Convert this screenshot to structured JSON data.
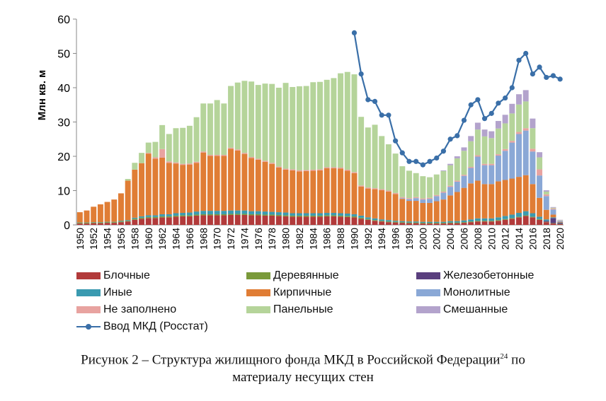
{
  "chart_data": {
    "type": "bar",
    "stacked": true,
    "ylabel": "Млн кв. м",
    "ylim": [
      0,
      60
    ],
    "yticks": [
      0,
      10,
      20,
      30,
      40,
      50,
      60
    ],
    "x": [
      1950,
      1951,
      1952,
      1953,
      1954,
      1955,
      1956,
      1957,
      1958,
      1959,
      1960,
      1961,
      1962,
      1963,
      1964,
      1965,
      1966,
      1967,
      1968,
      1969,
      1970,
      1971,
      1972,
      1973,
      1974,
      1975,
      1976,
      1977,
      1978,
      1979,
      1980,
      1981,
      1982,
      1983,
      1984,
      1985,
      1986,
      1987,
      1988,
      1989,
      1990,
      1991,
      1992,
      1993,
      1994,
      1995,
      1996,
      1997,
      1998,
      1999,
      2000,
      2001,
      2002,
      2003,
      2004,
      2005,
      2006,
      2007,
      2008,
      2009,
      2010,
      2011,
      2012,
      2013,
      2014,
      2015,
      2016,
      2017,
      2018,
      2019,
      2020
    ],
    "xtick_labels": [
      "1950",
      "1952",
      "1954",
      "1956",
      "1958",
      "1960",
      "1962",
      "1964",
      "1966",
      "1968",
      "1970",
      "1972",
      "1974",
      "1976",
      "1978",
      "1980",
      "1982",
      "1984",
      "1986",
      "1988",
      "1990",
      "1992",
      "1994",
      "1996",
      "1998",
      "2000",
      "2002",
      "2004",
      "2006",
      "2008",
      "2010",
      "2012",
      "2014",
      "2016",
      "2018",
      "2020"
    ],
    "series": [
      {
        "name": "Блочные",
        "color": "#b23a3a",
        "values": [
          0.4,
          0.4,
          0.5,
          0.5,
          0.6,
          0.6,
          0.8,
          1,
          1.5,
          1.8,
          2,
          2,
          2.2,
          2.2,
          2.4,
          2.5,
          2.5,
          2.7,
          2.8,
          2.8,
          2.8,
          2.8,
          2.9,
          2.9,
          2.9,
          2.8,
          2.8,
          2.7,
          2.7,
          2.6,
          2.5,
          2.4,
          2.4,
          2.4,
          2.4,
          2.4,
          2.5,
          2.5,
          2.4,
          2.3,
          2.2,
          1.8,
          1.5,
          1.2,
          1,
          0.8,
          0.7,
          0.6,
          0.5,
          0.5,
          0.4,
          0.4,
          0.4,
          0.4,
          0.5,
          0.5,
          0.6,
          0.8,
          1,
          1,
          1,
          1.2,
          1.5,
          1.8,
          2.2,
          2.6,
          2.2,
          1.5,
          0.8,
          0.4,
          0.2
        ]
      },
      {
        "name": "Деревянные",
        "color": "#7a9a3a",
        "values": [
          0.2,
          0.2,
          0.2,
          0.2,
          0.2,
          0.2,
          0.2,
          0.2,
          0.3,
          0.3,
          0.3,
          0.3,
          0.3,
          0.3,
          0.3,
          0.3,
          0.3,
          0.3,
          0.3,
          0.3,
          0.3,
          0.3,
          0.3,
          0.3,
          0.3,
          0.3,
          0.3,
          0.3,
          0.3,
          0.3,
          0.3,
          0.3,
          0.3,
          0.3,
          0.3,
          0.3,
          0.3,
          0.3,
          0.3,
          0.3,
          0.3,
          0.3,
          0.2,
          0.2,
          0.2,
          0.2,
          0.2,
          0.2,
          0.2,
          0.2,
          0.2,
          0.2,
          0.2,
          0.2,
          0.2,
          0.2,
          0.2,
          0.2,
          0.2,
          0.2,
          0.2,
          0.2,
          0.2,
          0.2,
          0.2,
          0.2,
          0.2,
          0.2,
          0.1,
          0.1,
          0.1
        ]
      },
      {
        "name": "Железобетонные",
        "color": "#5a3f7e",
        "values": [
          0,
          0,
          0,
          0,
          0,
          0,
          0,
          0,
          0,
          0,
          0,
          0,
          0,
          0,
          0,
          0,
          0,
          0,
          0,
          0,
          0,
          0,
          0,
          0,
          0,
          0,
          0,
          0,
          0,
          0,
          0,
          0,
          0,
          0,
          0,
          0,
          0,
          0,
          0,
          0,
          0,
          0,
          0,
          0,
          0,
          0,
          0,
          0,
          0,
          0,
          0,
          0,
          0,
          0,
          0,
          0,
          0,
          0,
          0,
          0,
          0,
          0,
          0,
          0,
          0,
          0,
          0,
          0,
          0.3,
          1.5,
          0.3
        ]
      },
      {
        "name": "Иные",
        "color": "#3a9ab0",
        "values": [
          0.1,
          0.1,
          0.1,
          0.1,
          0.1,
          0.1,
          0.2,
          0.2,
          0.3,
          0.4,
          0.5,
          0.5,
          0.6,
          0.6,
          0.7,
          0.7,
          0.8,
          0.9,
          1,
          1,
          1,
          1,
          1,
          1,
          1,
          0.9,
          0.9,
          0.9,
          0.8,
          0.8,
          0.8,
          0.7,
          0.7,
          0.7,
          0.7,
          0.7,
          0.7,
          0.7,
          0.7,
          0.7,
          0.6,
          0.6,
          0.5,
          0.5,
          0.4,
          0.4,
          0.3,
          0.3,
          0.3,
          0.3,
          0.3,
          0.3,
          0.3,
          0.3,
          0.4,
          0.4,
          0.5,
          0.6,
          0.7,
          0.7,
          0.7,
          0.8,
          0.9,
          1,
          1.1,
          1.2,
          1,
          0.7,
          0.4,
          0.2,
          0.1
        ]
      },
      {
        "name": "Кирпичные",
        "color": "#e07d35",
        "values": [
          3,
          3.5,
          4.5,
          5.2,
          5.8,
          6.5,
          8,
          11.5,
          14,
          15.5,
          18,
          16.5,
          16.5,
          15,
          14.5,
          14,
          14,
          14.2,
          17,
          16,
          16,
          16,
          18,
          17.5,
          16.5,
          15.5,
          15,
          14.5,
          14,
          13,
          12.5,
          12.5,
          12.2,
          12.3,
          12.4,
          12.5,
          13,
          13,
          13,
          12.5,
          12,
          8.5,
          8.4,
          8.5,
          8.5,
          8.3,
          7.8,
          6.5,
          6,
          6,
          5.5,
          5.5,
          6,
          6.5,
          7.5,
          8.5,
          9.5,
          10.5,
          11,
          10,
          10,
          10.5,
          10.5,
          10.5,
          10.5,
          10.5,
          8.5,
          5.5,
          2.8,
          0.8,
          0.2
        ]
      },
      {
        "name": "Монолитные",
        "color": "#8aa8d6",
        "values": [
          0,
          0,
          0,
          0,
          0,
          0,
          0,
          0,
          0,
          0,
          0,
          0,
          0,
          0,
          0,
          0,
          0,
          0,
          0,
          0,
          0,
          0,
          0,
          0,
          0,
          0,
          0,
          0,
          0,
          0,
          0,
          0,
          0,
          0,
          0,
          0,
          0,
          0,
          0,
          0,
          0,
          0,
          0,
          0,
          0,
          0,
          0,
          0.2,
          0.5,
          0.8,
          1,
          1.2,
          1.5,
          2,
          2.5,
          3,
          3.5,
          4.5,
          7,
          5.5,
          5.5,
          7.5,
          8.5,
          10.5,
          12.5,
          13,
          9.5,
          6.5,
          4,
          1.5,
          0.3
        ]
      },
      {
        "name": "Не заполнено",
        "color": "#e8a3a0",
        "values": [
          0,
          0,
          0,
          0,
          0,
          0,
          0,
          0,
          0,
          0,
          0.2,
          0.4,
          2.5,
          0.4,
          0.3,
          0.3,
          0.3,
          0.3,
          0.3,
          0.3,
          0.3,
          0.3,
          0.3,
          0.3,
          0.3,
          0.3,
          0.3,
          0.3,
          0.3,
          0.3,
          0.3,
          0.3,
          0.3,
          0.3,
          0.3,
          0.3,
          0.3,
          0.3,
          0.3,
          0.3,
          0.3,
          0.3,
          0.3,
          0.3,
          0.3,
          0.3,
          0.3,
          0.3,
          0.3,
          0.3,
          0.3,
          0.3,
          0.3,
          0.3,
          0.3,
          0.3,
          0.3,
          0.3,
          0.4,
          0.4,
          0.4,
          0.4,
          0.5,
          0.5,
          0.6,
          0.7,
          0.8,
          1.8,
          0.5,
          0.3,
          0.1
        ]
      },
      {
        "name": "Панельные",
        "color": "#b5d49a",
        "values": [
          0,
          0,
          0,
          0,
          0,
          0,
          0,
          0.5,
          2,
          3,
          3,
          4.5,
          7,
          8,
          10,
          10.5,
          11,
          13,
          14,
          15,
          16,
          15,
          18,
          19.5,
          21,
          22,
          21.5,
          22.5,
          23,
          23,
          25,
          24,
          24.5,
          24.5,
          25.5,
          25.5,
          25.5,
          26,
          27.5,
          28.5,
          28.5,
          20,
          17.5,
          18.5,
          15.5,
          13.5,
          11.5,
          9,
          8,
          7,
          6.5,
          6,
          6,
          6,
          6,
          6.5,
          7,
          7.5,
          7.5,
          8,
          7.5,
          7.5,
          7.5,
          8,
          8,
          7.8,
          6,
          3.5,
          0.8,
          0.2,
          0.1
        ]
      },
      {
        "name": "Смешанные",
        "color": "#b3a3cc",
        "values": [
          0,
          0,
          0,
          0,
          0,
          0,
          0,
          0,
          0,
          0,
          0,
          0,
          0,
          0,
          0,
          0,
          0,
          0,
          0,
          0,
          0,
          0,
          0,
          0,
          0,
          0,
          0,
          0,
          0,
          0,
          0,
          0,
          0,
          0,
          0,
          0,
          0,
          0,
          0,
          0,
          0,
          0,
          0,
          0,
          0,
          0,
          0,
          0,
          0,
          0,
          0,
          0,
          0,
          0.2,
          0.4,
          0.6,
          1,
          1.5,
          2,
          2,
          2,
          2.2,
          2.5,
          2.8,
          3,
          3.3,
          2.8,
          1.5,
          0.4,
          0.2,
          0.1
        ]
      }
    ],
    "line": {
      "name": "Ввод МКД (Росстат)",
      "color": "#3a6fa8",
      "x": [
        1990,
        1991,
        1992,
        1993,
        1994,
        1995,
        1996,
        1997,
        1998,
        1999,
        2000,
        2001,
        2002,
        2003,
        2004,
        2005,
        2006,
        2007,
        2008,
        2009,
        2010,
        2011,
        2012,
        2013,
        2014,
        2015,
        2016,
        2017,
        2018,
        2019,
        2020
      ],
      "values": [
        56,
        44,
        36.5,
        36,
        32,
        32,
        24.5,
        21,
        18.5,
        18.5,
        17.5,
        18.5,
        19.5,
        21.5,
        25,
        26,
        30.5,
        35,
        36.5,
        31,
        32.5,
        35.5,
        37,
        40,
        48,
        50,
        44,
        46,
        43,
        43.5,
        42.5
      ]
    }
  },
  "legend": [
    {
      "label": "Блочные",
      "color": "#b23a3a",
      "kind": "swatch"
    },
    {
      "label": "Деревянные",
      "color": "#7a9a3a",
      "kind": "swatch"
    },
    {
      "label": "Железобетонные",
      "color": "#5a3f7e",
      "kind": "swatch"
    },
    {
      "label": "Иные",
      "color": "#3a9ab0",
      "kind": "swatch"
    },
    {
      "label": "Кирпичные",
      "color": "#e07d35",
      "kind": "swatch"
    },
    {
      "label": "Монолитные",
      "color": "#8aa8d6",
      "kind": "swatch"
    },
    {
      "label": "Не заполнено",
      "color": "#e8a3a0",
      "kind": "swatch"
    },
    {
      "label": "Панельные",
      "color": "#b5d49a",
      "kind": "swatch"
    },
    {
      "label": "Смешанные",
      "color": "#b3a3cc",
      "kind": "swatch"
    },
    {
      "label": "Ввод МКД (Росстат)",
      "color": "#3a6fa8",
      "kind": "line"
    }
  ],
  "caption": {
    "text": "Рисунок 2 – Структура жилищного фонда МКД в Российской Федерации",
    "footnote": "24",
    "text_after": " по",
    "line2": "материалу несущих стен"
  }
}
